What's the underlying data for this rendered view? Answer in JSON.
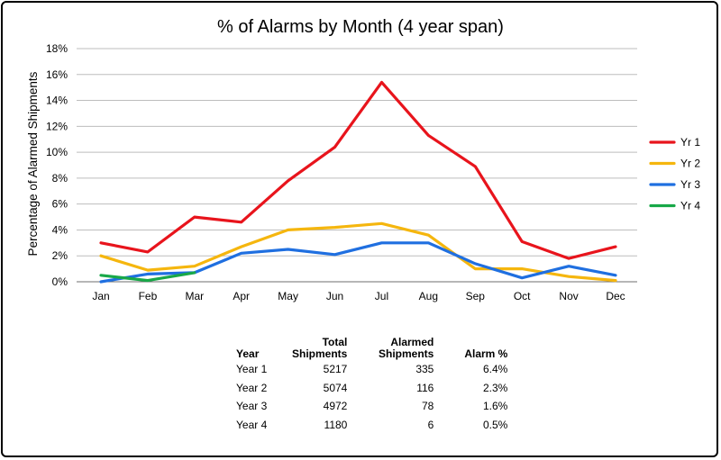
{
  "chart_data": {
    "type": "line",
    "title": "% of Alarms by Month (4 year span)",
    "ylabel": "Percentage of Alarmed Shipments",
    "xlabel": "",
    "categories": [
      "Jan",
      "Feb",
      "Mar",
      "Apr",
      "May",
      "Jun",
      "Jul",
      "Aug",
      "Sep",
      "Oct",
      "Nov",
      "Dec"
    ],
    "ylim": [
      0,
      18
    ],
    "yticks": [
      0,
      2,
      4,
      6,
      8,
      10,
      12,
      14,
      16,
      18
    ],
    "ytick_labels": [
      "0%",
      "2%",
      "4%",
      "6%",
      "8%",
      "10%",
      "12%",
      "14%",
      "16%",
      "18%"
    ],
    "grid": true,
    "legend_position": "right",
    "series": [
      {
        "name": "Yr 1",
        "color": "#e8141c",
        "values": [
          3.0,
          2.3,
          5.0,
          4.6,
          7.8,
          10.4,
          15.4,
          11.3,
          8.9,
          3.1,
          1.8,
          2.7
        ]
      },
      {
        "name": "Yr 2",
        "color": "#f5b60e",
        "values": [
          2.0,
          0.9,
          1.2,
          2.7,
          4.0,
          4.2,
          4.5,
          3.6,
          1.0,
          1.0,
          0.4,
          0.1
        ]
      },
      {
        "name": "Yr 3",
        "color": "#1f6fe0",
        "values": [
          0.0,
          0.6,
          0.7,
          2.2,
          2.5,
          2.1,
          3.0,
          3.0,
          1.4,
          0.3,
          1.2,
          0.5
        ]
      },
      {
        "name": "Yr 4",
        "color": "#18a848",
        "values": [
          0.5,
          0.1,
          0.7,
          null,
          null,
          null,
          null,
          null,
          null,
          null,
          null,
          null
        ]
      }
    ]
  },
  "table": {
    "headers": {
      "year": "Year",
      "total": [
        "Total",
        "Shipments"
      ],
      "alarmed": [
        "Alarmed",
        "Shipments"
      ],
      "pct": "Alarm %"
    },
    "rows": [
      {
        "year": "Year 1",
        "total": "5217",
        "alarmed": "335",
        "pct": "6.4%"
      },
      {
        "year": "Year 2",
        "total": "5074",
        "alarmed": "116",
        "pct": "2.3%"
      },
      {
        "year": "Year 3",
        "total": "4972",
        "alarmed": "78",
        "pct": "1.6%"
      },
      {
        "year": "Year 4",
        "total": "1180",
        "alarmed": "6",
        "pct": "0.5%"
      }
    ]
  }
}
